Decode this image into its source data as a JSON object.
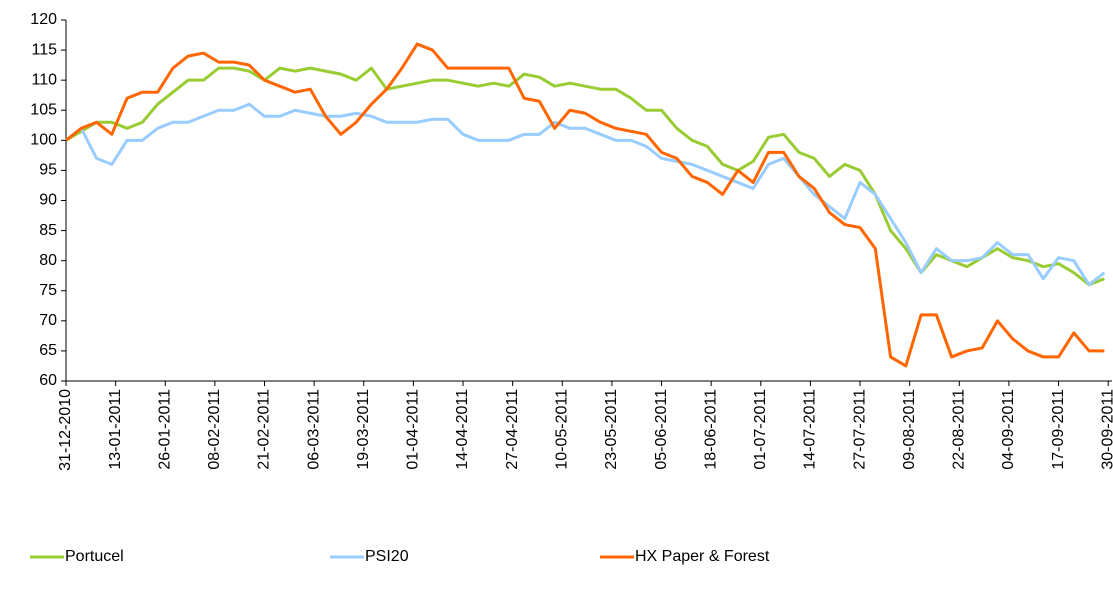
{
  "chart_data": {
    "type": "line",
    "x": [
      "31-12-2010",
      "04-01-2011",
      "08-01-2011",
      "12-01-2011",
      "16-01-2011",
      "20-01-2011",
      "24-01-2011",
      "28-01-2011",
      "01-02-2011",
      "05-02-2011",
      "09-02-2011",
      "13-02-2011",
      "17-02-2011",
      "21-02-2011",
      "25-02-2011",
      "01-03-2011",
      "05-03-2011",
      "09-03-2011",
      "13-03-2011",
      "17-03-2011",
      "21-03-2011",
      "25-03-2011",
      "29-03-2011",
      "02-04-2011",
      "06-04-2011",
      "10-04-2011",
      "14-04-2011",
      "18-04-2011",
      "22-04-2011",
      "26-04-2011",
      "30-04-2011",
      "04-05-2011",
      "08-05-2011",
      "12-05-2011",
      "16-05-2011",
      "20-05-2011",
      "24-05-2011",
      "28-05-2011",
      "01-06-2011",
      "05-06-2011",
      "09-06-2011",
      "13-06-2011",
      "17-06-2011",
      "21-06-2011",
      "25-06-2011",
      "29-06-2011",
      "03-07-2011",
      "07-07-2011",
      "11-07-2011",
      "15-07-2011",
      "19-07-2011",
      "23-07-2011",
      "27-07-2011",
      "31-07-2011",
      "04-08-2011",
      "08-08-2011",
      "12-08-2011",
      "16-08-2011",
      "20-08-2011",
      "24-08-2011",
      "28-08-2011",
      "01-09-2011",
      "05-09-2011",
      "09-09-2011",
      "13-09-2011",
      "17-09-2011",
      "21-09-2011",
      "25-09-2011",
      "29-09-2011"
    ],
    "series": [
      {
        "name": "Portucel",
        "color": "#99cc33",
        "values": [
          100,
          101.5,
          103,
          103,
          102,
          103,
          106,
          108,
          110,
          110,
          112,
          112,
          111.5,
          110,
          112,
          111.5,
          112,
          111.5,
          111,
          110,
          112,
          108.5,
          109,
          109.5,
          110,
          110,
          109.5,
          109,
          109.5,
          109,
          111,
          110.5,
          109,
          109.5,
          109,
          108.5,
          108.5,
          107,
          105,
          105,
          102,
          100,
          99,
          96,
          95,
          96.5,
          100.5,
          101,
          98,
          97,
          94,
          96,
          95,
          91,
          85,
          82,
          78,
          81,
          80,
          79,
          80.5,
          82,
          80.5,
          80,
          79,
          79.5,
          78,
          76,
          77
        ]
      },
      {
        "name": "PSI20",
        "color": "#99ccff",
        "values": [
          100,
          102,
          97,
          96,
          100,
          100,
          102,
          103,
          103,
          104,
          105,
          105,
          106,
          104,
          104,
          105,
          104.5,
          104,
          104,
          104.5,
          104,
          103,
          103,
          103,
          103.5,
          103.5,
          101,
          100,
          100,
          100,
          101,
          101,
          103,
          102,
          102,
          101,
          100,
          100,
          99,
          97,
          96.5,
          96,
          95,
          94,
          93,
          92,
          96,
          97,
          94,
          91,
          89,
          87,
          93,
          91,
          87,
          83,
          78,
          82,
          80,
          80,
          80.5,
          83,
          81,
          81,
          77,
          80.5,
          80,
          76,
          78
        ]
      },
      {
        "name": "HX Paper & Forest",
        "color": "#ff6600",
        "values": [
          100,
          102,
          103,
          101,
          107,
          108,
          108,
          112,
          114,
          114.5,
          113,
          113,
          112.5,
          110,
          109,
          108,
          108.5,
          104,
          101,
          103,
          106,
          108.5,
          112,
          116,
          115,
          112,
          112,
          112,
          112,
          112,
          107,
          106.5,
          102,
          105,
          104.5,
          103,
          102,
          101.5,
          101,
          98,
          97,
          94,
          93,
          91,
          95,
          93,
          98,
          98,
          94,
          92,
          88,
          86,
          85.5,
          82,
          64,
          62.5,
          71,
          71,
          64,
          65,
          65.5,
          70,
          67,
          65,
          64,
          64,
          68,
          65,
          65
        ]
      }
    ],
    "xlim": [
      "31-12-2010",
      "01-10-2011"
    ],
    "xticks": [
      "31-12-2010",
      "13-01-2011",
      "26-01-2011",
      "08-02-2011",
      "21-02-2011",
      "06-03-2011",
      "19-03-2011",
      "01-04-2011",
      "14-04-2011",
      "27-04-2011",
      "10-05-2011",
      "23-05-2011",
      "05-06-2011",
      "18-06-2011",
      "01-07-2011",
      "14-07-2011",
      "27-07-2011",
      "09-08-2011",
      "22-08-2011",
      "04-09-2011",
      "17-09-2011",
      "30-09-2011"
    ],
    "ylim": [
      60,
      120
    ],
    "yticks": [
      60,
      65,
      70,
      75,
      80,
      85,
      90,
      95,
      100,
      105,
      110,
      115,
      120
    ],
    "grid": false
  }
}
